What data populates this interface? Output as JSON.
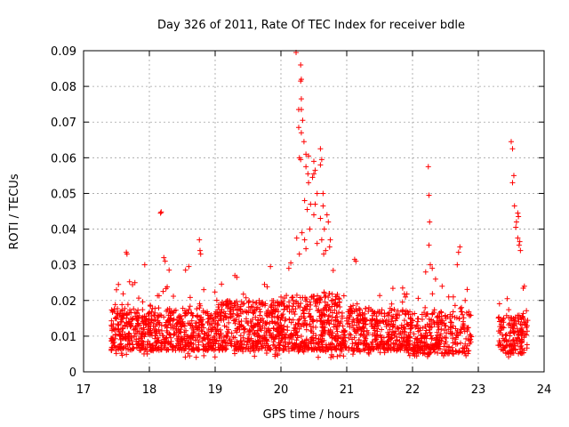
{
  "chart_data": {
    "type": "scatter",
    "title": "Day 326 of 2011, Rate Of TEC Index for receiver bdle",
    "xlabel": "GPS time / hours",
    "ylabel": "ROTI / TECUs",
    "xlim": [
      17,
      24
    ],
    "ylim": [
      0,
      0.09
    ],
    "x_ticks": [
      "17",
      "18",
      "19",
      "20",
      "21",
      "22",
      "23",
      "24"
    ],
    "y_ticks": [
      "0",
      "0.01",
      "0.02",
      "0.03",
      "0.04",
      "0.05",
      "0.06",
      "0.07",
      "0.08",
      "0.09"
    ],
    "grid": true,
    "marker": "+",
    "color": "#ff0000",
    "series": [
      {
        "name": "ROTI",
        "bands": [
          {
            "x_start": 17.42,
            "x_end": 18.0,
            "low": 0.006,
            "high": 0.018,
            "n": 260
          },
          {
            "x_start": 18.0,
            "x_end": 19.0,
            "low": 0.006,
            "high": 0.018,
            "n": 420
          },
          {
            "x_start": 19.0,
            "x_end": 20.0,
            "low": 0.006,
            "high": 0.02,
            "n": 440
          },
          {
            "x_start": 20.0,
            "x_end": 20.9,
            "low": 0.006,
            "high": 0.022,
            "n": 420
          },
          {
            "x_start": 20.9,
            "x_end": 22.0,
            "low": 0.006,
            "high": 0.018,
            "n": 440
          },
          {
            "x_start": 22.0,
            "x_end": 22.9,
            "low": 0.005,
            "high": 0.017,
            "n": 320
          },
          {
            "x_start": 23.3,
            "x_end": 23.75,
            "low": 0.005,
            "high": 0.016,
            "n": 170
          }
        ],
        "peaks": [
          [
            17.65,
            0.0335
          ],
          [
            17.66,
            0.033
          ],
          [
            18.17,
            0.0445
          ],
          [
            18.18,
            0.0448
          ],
          [
            18.22,
            0.032
          ],
          [
            18.24,
            0.031
          ],
          [
            18.76,
            0.037
          ],
          [
            18.77,
            0.034
          ],
          [
            18.78,
            0.033
          ],
          [
            20.23,
            0.0895
          ],
          [
            20.3,
            0.086
          ],
          [
            20.31,
            0.082
          ],
          [
            20.3,
            0.0815
          ],
          [
            20.31,
            0.0765
          ],
          [
            20.27,
            0.0735
          ],
          [
            20.31,
            0.0735
          ],
          [
            20.33,
            0.0705
          ],
          [
            20.27,
            0.0685
          ],
          [
            20.31,
            0.067
          ],
          [
            20.35,
            0.0645
          ],
          [
            20.28,
            0.06
          ],
          [
            20.3,
            0.0595
          ],
          [
            20.38,
            0.061
          ],
          [
            20.42,
            0.0605
          ],
          [
            20.38,
            0.0575
          ],
          [
            20.41,
            0.0555
          ],
          [
            20.5,
            0.0555
          ],
          [
            20.52,
            0.0565
          ],
          [
            20.5,
            0.059
          ],
          [
            20.48,
            0.0545
          ],
          [
            20.6,
            0.0625
          ],
          [
            20.62,
            0.0595
          ],
          [
            20.6,
            0.058
          ],
          [
            20.42,
            0.053
          ],
          [
            20.55,
            0.05
          ],
          [
            20.64,
            0.05
          ],
          [
            20.36,
            0.048
          ],
          [
            20.45,
            0.047
          ],
          [
            20.52,
            0.047
          ],
          [
            20.4,
            0.0455
          ],
          [
            20.5,
            0.044
          ],
          [
            20.64,
            0.0465
          ],
          [
            20.6,
            0.043
          ],
          [
            20.7,
            0.044
          ],
          [
            20.72,
            0.042
          ],
          [
            20.66,
            0.04
          ],
          [
            20.44,
            0.04
          ],
          [
            20.24,
            0.0375
          ],
          [
            20.32,
            0.039
          ],
          [
            20.36,
            0.037
          ],
          [
            20.55,
            0.036
          ],
          [
            20.62,
            0.037
          ],
          [
            20.75,
            0.037
          ],
          [
            20.74,
            0.035
          ],
          [
            20.68,
            0.034
          ],
          [
            20.38,
            0.0345
          ],
          [
            20.28,
            0.033
          ],
          [
            20.65,
            0.033
          ],
          [
            22.24,
            0.0575
          ],
          [
            22.25,
            0.0495
          ],
          [
            22.26,
            0.042
          ],
          [
            22.25,
            0.0355
          ],
          [
            22.7,
            0.0335
          ],
          [
            22.72,
            0.035
          ],
          [
            22.27,
            0.03
          ],
          [
            22.3,
            0.029
          ],
          [
            22.68,
            0.03
          ],
          [
            21.12,
            0.0315
          ],
          [
            21.14,
            0.031
          ],
          [
            23.5,
            0.0645
          ],
          [
            23.52,
            0.0625
          ],
          [
            23.54,
            0.055
          ],
          [
            23.52,
            0.053
          ],
          [
            23.55,
            0.0465
          ],
          [
            23.6,
            0.0445
          ],
          [
            23.61,
            0.0435
          ],
          [
            23.58,
            0.042
          ],
          [
            23.57,
            0.0405
          ],
          [
            23.6,
            0.0375
          ],
          [
            23.63,
            0.0365
          ],
          [
            23.62,
            0.0355
          ],
          [
            23.64,
            0.034
          ],
          [
            23.7,
            0.024
          ],
          [
            19.84,
            0.0295
          ],
          [
            19.3,
            0.027
          ],
          [
            19.33,
            0.0265
          ],
          [
            18.55,
            0.0285
          ],
          [
            18.6,
            0.0295
          ],
          [
            17.53,
            0.0245
          ],
          [
            17.5,
            0.023
          ],
          [
            17.78,
            0.025
          ],
          [
            17.93,
            0.03
          ],
          [
            18.3,
            0.0285
          ],
          [
            20.12,
            0.029
          ],
          [
            20.15,
            0.0305
          ],
          [
            21.85,
            0.0235
          ],
          [
            22.45,
            0.024
          ],
          [
            22.55,
            0.021
          ],
          [
            22.62,
            0.021
          ],
          [
            22.8,
            0.02
          ],
          [
            22.2,
            0.028
          ],
          [
            22.35,
            0.026
          ]
        ]
      }
    ]
  }
}
